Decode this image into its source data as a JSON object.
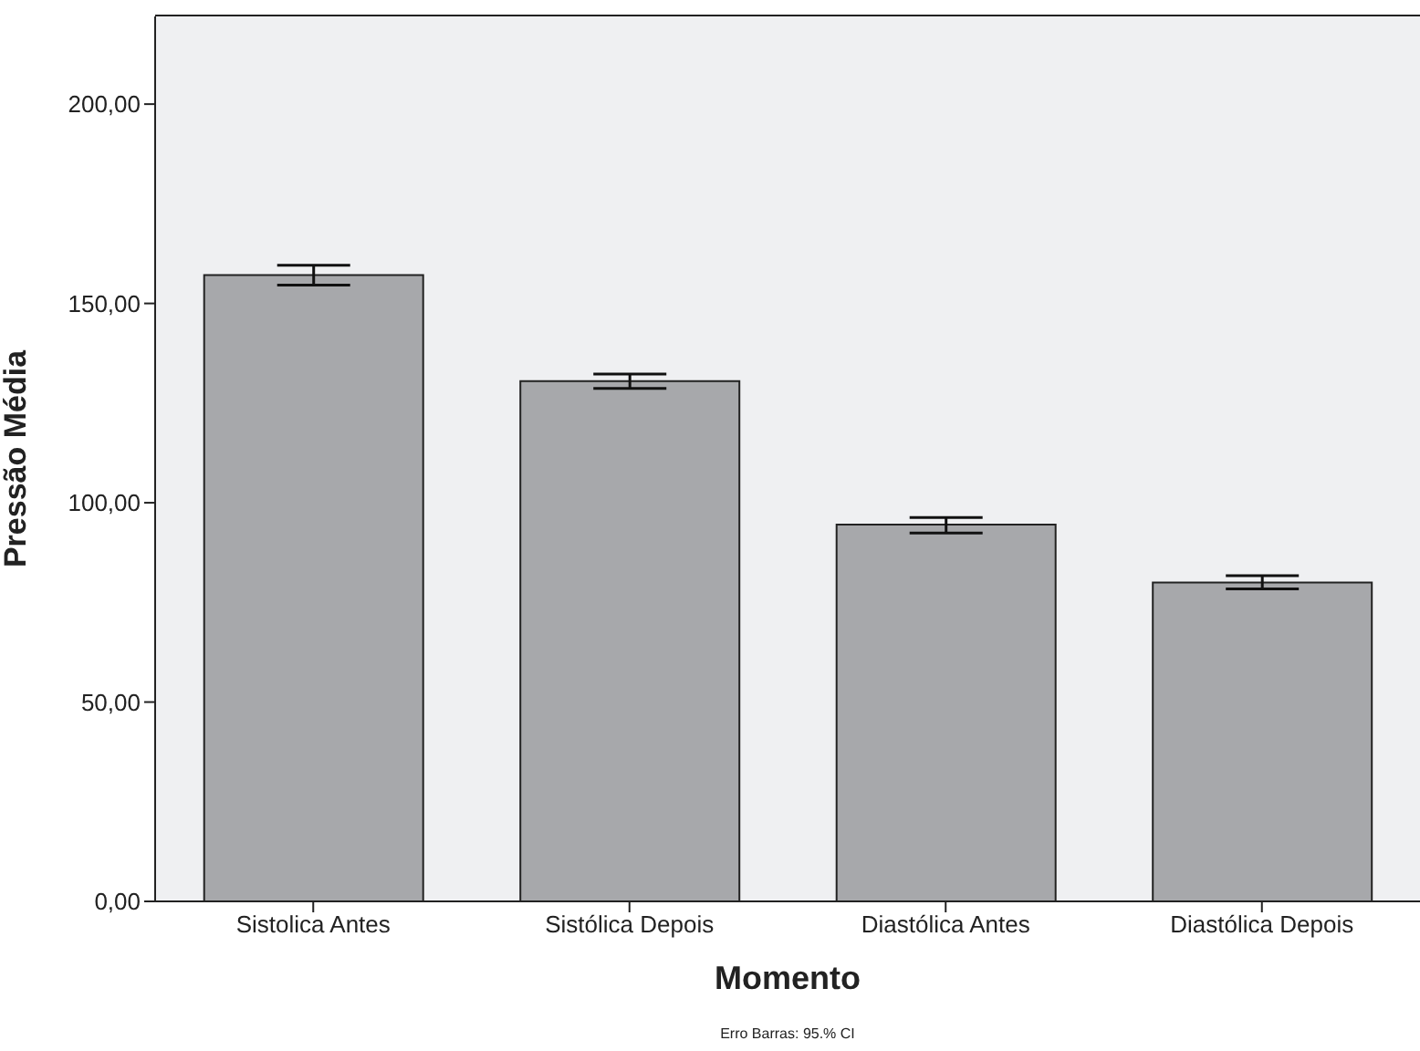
{
  "chart_data": {
    "type": "bar",
    "xlabel": "Momento",
    "ylabel": "Pressão Média",
    "categories": [
      "Sistolica Antes",
      "Sistólica Depois",
      "Diastólica Antes",
      "Diastólica Depois"
    ],
    "values": [
      157.1,
      130.5,
      94.5,
      80.0
    ],
    "errors": [
      [
        154.6,
        159.6
      ],
      [
        128.7,
        132.3
      ],
      [
        92.4,
        96.3
      ],
      [
        78.4,
        81.7
      ]
    ],
    "color": "#a7a8ab",
    "ylim": [
      0,
      222
    ],
    "yticks": [
      {
        "value": 0,
        "label": "0,00"
      },
      {
        "value": 50,
        "label": "50,00"
      },
      {
        "value": 100,
        "label": "100,00"
      },
      {
        "value": 150,
        "label": "150,00"
      },
      {
        "value": 200,
        "label": "200,00"
      }
    ],
    "annotations": [
      "Erro Barras: 95.% CI"
    ]
  }
}
